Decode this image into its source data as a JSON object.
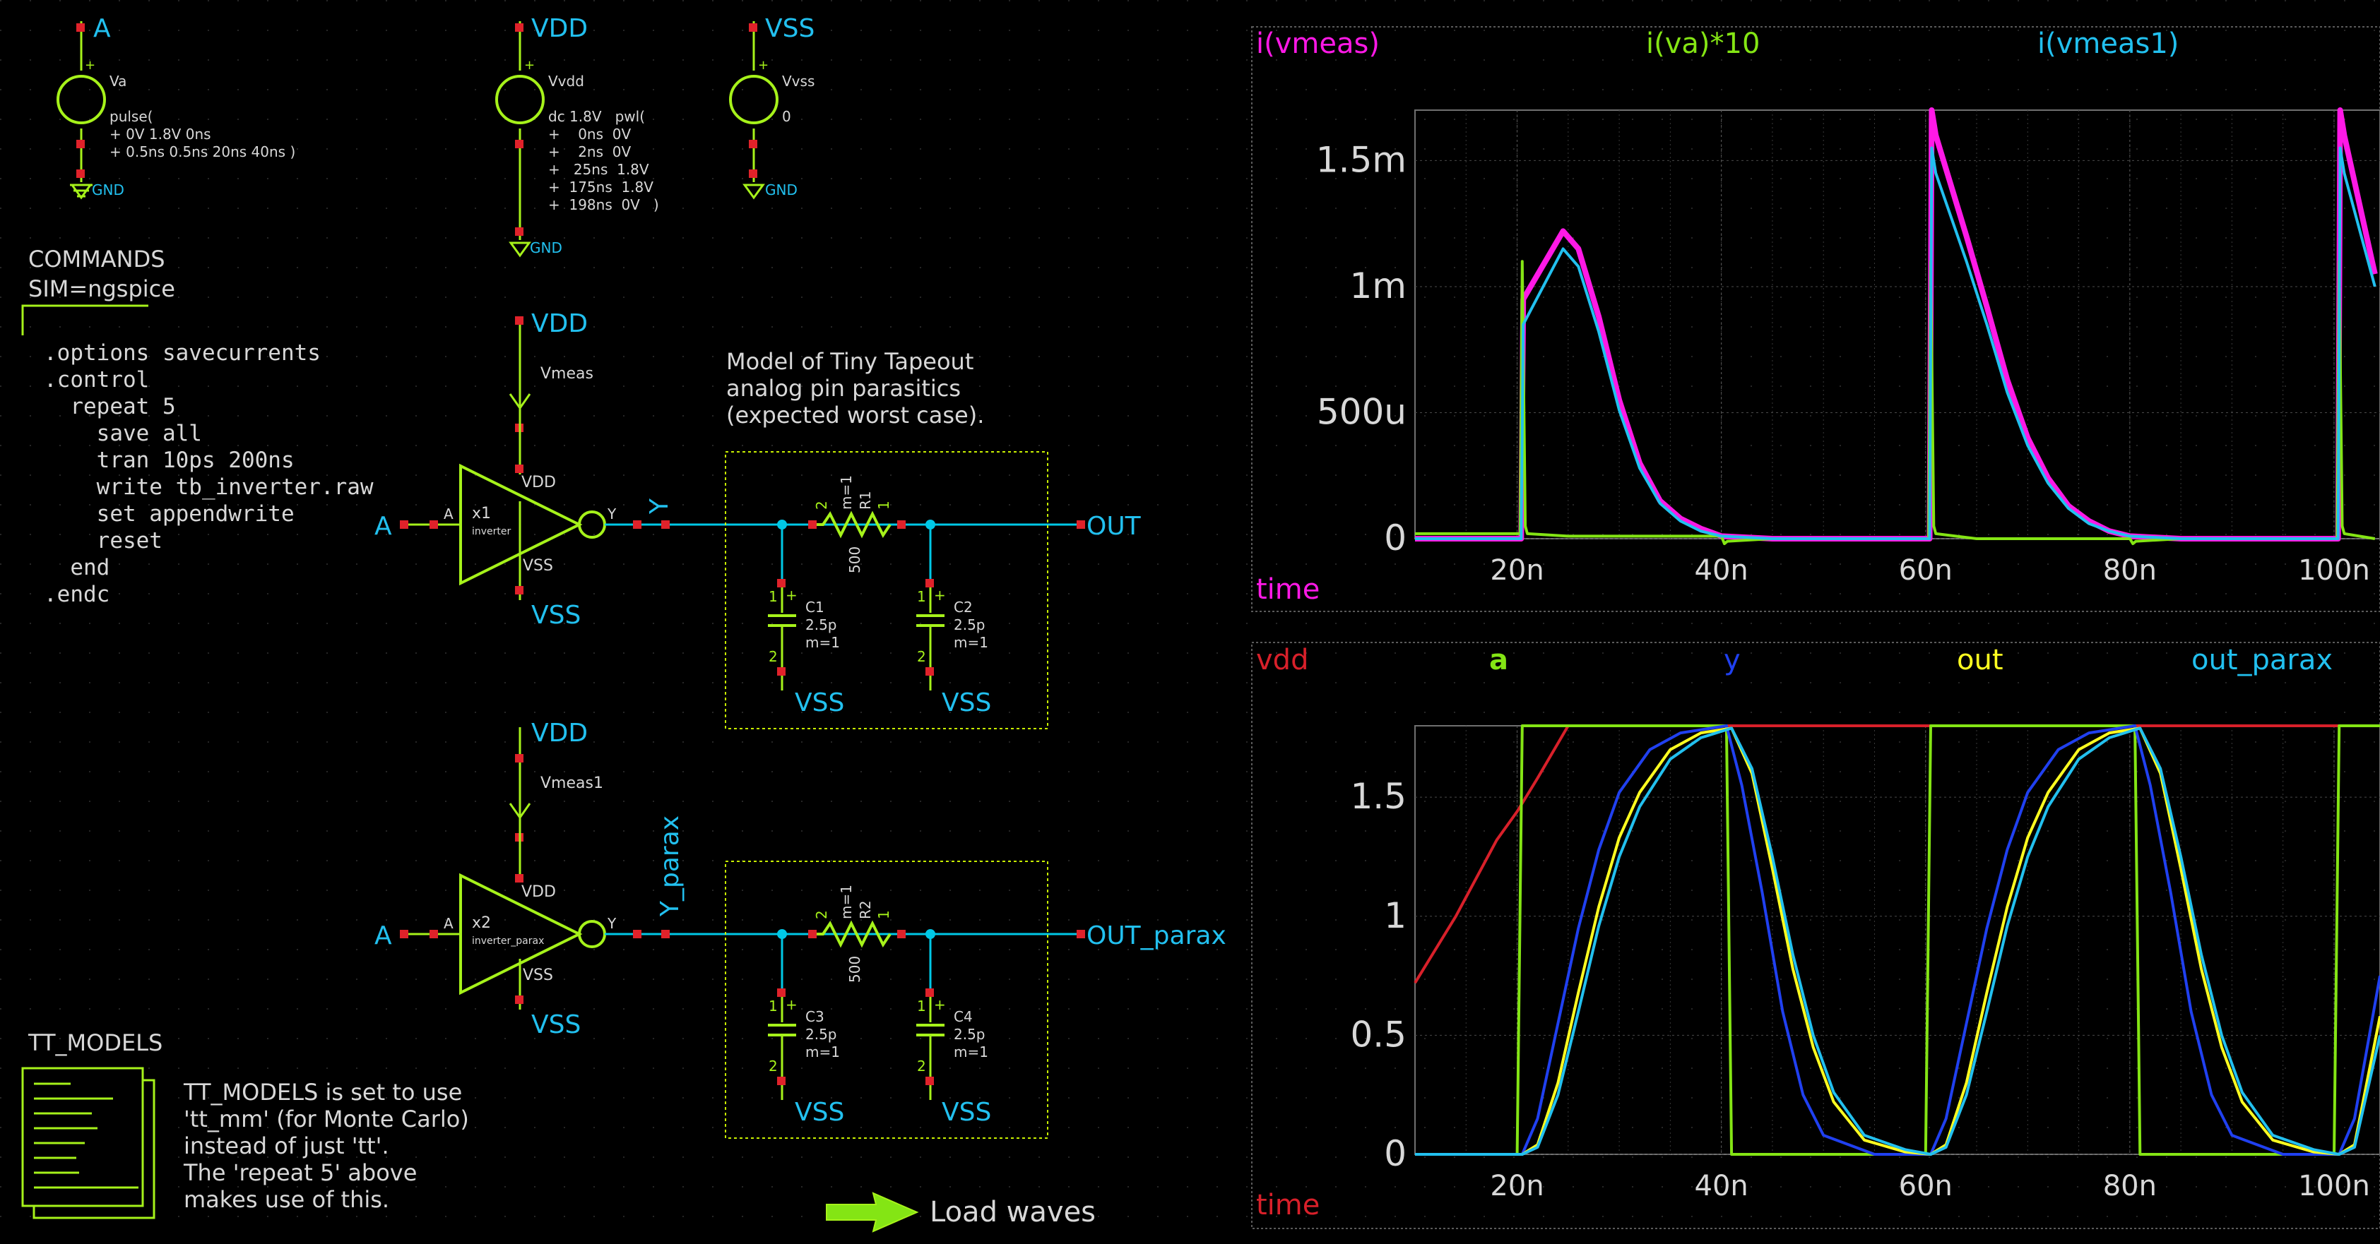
{
  "colors": {
    "background": "#000000",
    "wire": "#00c8e6",
    "component": "#a6f21a",
    "pin": "#e0222a",
    "label": "#22c0ef",
    "text": "#d8d8d8",
    "box": "#c8f000",
    "grid_dot": "#2a2a2a",
    "plot_frame": "#5a5a5a",
    "magenta": "#ff19e6",
    "green": "#84e514",
    "cyan": "#22c0ef",
    "red": "#d8202a",
    "blue": "#2040f0",
    "yellow": "#ffff20"
  },
  "sources": {
    "va": {
      "net": "A",
      "name": "Va",
      "value": [
        "pulse(",
        "+ 0V 1.8V 0ns",
        "+ 0.5ns 0.5ns 20ns 40ns )"
      ],
      "ground": "GND"
    },
    "vdd": {
      "net": "VDD",
      "name": "Vvdd",
      "value": [
        "dc 1.8V   pwl(",
        "+    0ns  0V",
        "+    2ns  0V",
        "+   25ns  1.8V",
        "+  175ns  1.8V",
        "+  198ns  0V   )"
      ],
      "ground": "GND"
    },
    "vss": {
      "net": "VSS",
      "name": "Vvss",
      "value": [
        "0"
      ],
      "ground": "GND"
    }
  },
  "commands": {
    "title": "COMMANDS",
    "sim": "SIM=ngspice",
    "lines": [
      ".options savecurrents",
      ".control",
      "  repeat 5",
      "    save all",
      "    tran 10ps 200ns",
      "    write tb_inverter.raw",
      "    set appendwrite",
      "    reset",
      "  end",
      ".endc"
    ]
  },
  "parasitic_note": [
    "Model of Tiny Tapeout",
    "analog pin parasitics",
    "(expected worst case)."
  ],
  "circuit1": {
    "vdd_label": "VDD",
    "meas_name": "Vmeas",
    "pin_vdd": "VDD",
    "pin_vss": "VSS",
    "vss_label": "VSS",
    "input": "A",
    "pin_a": "A",
    "inst": "x1",
    "cell": "inverter",
    "pin_y": "Y",
    "net_y": "Y",
    "r_name": "R1",
    "r_mult": "m=1",
    "r_val": "500",
    "r_pin2": "2",
    "r_pin1": "1",
    "c1": {
      "name": "C1",
      "val": "2.5p",
      "mult": "m=1"
    },
    "c2": {
      "name": "C2",
      "val": "2.5p",
      "mult": "m=1"
    },
    "c_vss": "VSS",
    "output": "OUT"
  },
  "circuit2": {
    "vdd_label": "VDD",
    "meas_name": "Vmeas1",
    "pin_vdd": "VDD",
    "pin_vss": "VSS",
    "vss_label": "VSS",
    "input": "A",
    "pin_a": "A",
    "inst": "x2",
    "cell": "inverter_parax",
    "pin_y": "Y",
    "net_y": "Y_parax",
    "r_name": "R2",
    "r_mult": "m=1",
    "r_val": "500",
    "r_pin2": "2",
    "r_pin1": "1",
    "c1": {
      "name": "C3",
      "val": "2.5p",
      "mult": "m=1"
    },
    "c2": {
      "name": "C4",
      "val": "2.5p",
      "mult": "m=1"
    },
    "c_vss": "VSS",
    "output": "OUT_parax"
  },
  "tt_models": {
    "title": "TT_MODELS",
    "note": [
      "TT_MODELS is set to use",
      "'tt_mm' (for Monte Carlo)",
      "instead of just 'tt'.",
      "The 'repeat 5' above",
      "makes use of this."
    ]
  },
  "load_waves": {
    "label": "Load waves"
  },
  "chart_data": [
    {
      "type": "line",
      "xlabel": "time",
      "legend": [
        "i(vmeas)",
        "i(va)*10",
        "i(vmeas1)"
      ],
      "series": [
        {
          "name": "i(vmeas)",
          "color": "#ff19e6",
          "x": [
            10,
            20.4,
            20.6,
            24.5,
            26,
            28,
            30,
            32,
            34,
            36,
            38,
            40,
            45,
            60,
            60.4,
            60.6,
            61,
            64,
            66,
            68,
            70,
            72,
            74,
            76,
            78,
            80,
            85,
            100,
            100.4,
            100.6,
            101,
            104
          ],
          "y": [
            0,
            0,
            0.00095,
            0.00122,
            0.00115,
            0.00088,
            0.00055,
            0.0003,
            0.00015,
            8e-05,
            4e-05,
            1e-05,
            0,
            0,
            0,
            0.0017,
            0.0016,
            0.0012,
            0.00092,
            0.00063,
            0.0004,
            0.00024,
            0.00013,
            7e-05,
            3e-05,
            1e-05,
            0,
            0,
            0,
            0.0017,
            0.0016,
            0.00105
          ]
        },
        {
          "name": "i(va)*10",
          "color": "#84e514",
          "x": [
            10,
            20.3,
            20.5,
            20.8,
            21,
            25,
            30,
            35,
            40,
            40.3,
            40.6,
            45,
            60,
            60.3,
            60.5,
            60.8,
            61,
            65,
            80,
            80.3,
            80.6,
            85,
            100,
            100.3,
            100.5,
            100.8,
            101,
            104
          ],
          "y": [
            2e-05,
            2e-05,
            0.0011,
            5e-05,
            2e-05,
            1e-05,
            1e-05,
            1e-05,
            1e-05,
            -2e-05,
            -1e-05,
            0,
            0,
            0,
            0.0011,
            5e-05,
            2e-05,
            0,
            0,
            -2e-05,
            -1e-05,
            0,
            0,
            0,
            0.0011,
            5e-05,
            2e-05,
            0
          ]
        },
        {
          "name": "i(vmeas1)",
          "color": "#22c0ef",
          "x": [
            10,
            20.4,
            20.6,
            24.5,
            26,
            28,
            30,
            32,
            34,
            36,
            38,
            40,
            45,
            60,
            60.4,
            60.6,
            61,
            64,
            66,
            68,
            70,
            72,
            74,
            76,
            78,
            80,
            85,
            100,
            100.4,
            100.6,
            101,
            104
          ],
          "y": [
            0,
            0,
            0.00085,
            0.00115,
            0.00108,
            0.00082,
            0.00051,
            0.00028,
            0.00014,
            7e-05,
            3e-05,
            1e-05,
            0,
            0,
            0,
            0.00155,
            0.00145,
            0.0011,
            0.00085,
            0.00058,
            0.00037,
            0.00022,
            0.00012,
            6e-05,
            3e-05,
            1e-05,
            0,
            0,
            0,
            0.00155,
            0.00145,
            0.001
          ]
        }
      ],
      "xlim": [
        10,
        104.5
      ],
      "ylim": [
        0,
        0.0017
      ],
      "xticks": [
        20,
        40,
        60,
        80,
        100
      ],
      "xtick_labels": [
        "20n",
        "40n",
        "60n",
        "80n",
        "100n"
      ],
      "yticks": [
        0,
        0.0005,
        0.001,
        0.0015
      ],
      "ytick_labels": [
        "0",
        "500u",
        "1m",
        "1.5m"
      ],
      "grid": true
    },
    {
      "type": "line",
      "xlabel": "time",
      "legend": [
        "vdd",
        "a",
        "y",
        "out",
        "out_parax"
      ],
      "series": [
        {
          "name": "vdd",
          "color": "#d8202a",
          "x": [
            10,
            14,
            18,
            20,
            22,
            25,
            104.5
          ],
          "y": [
            0.72,
            1.0,
            1.32,
            1.44,
            1.58,
            1.8,
            1.8
          ]
        },
        {
          "name": "a",
          "color": "#84e514",
          "x": [
            10,
            20,
            20.5,
            40.5,
            41,
            60,
            60.5,
            80.5,
            81,
            100,
            100.5,
            104.5
          ],
          "y": [
            0,
            0,
            1.8,
            1.8,
            0,
            0,
            1.8,
            1.8,
            0,
            0,
            1.8,
            1.8
          ]
        },
        {
          "name": "y",
          "color": "#2040f0",
          "x": [
            10,
            20.5,
            22,
            24,
            26,
            28,
            30,
            33,
            36,
            40.5,
            42,
            44,
            46,
            48,
            50,
            55,
            60.5,
            62,
            64,
            66,
            68,
            70,
            73,
            76,
            80.5,
            82,
            84,
            86,
            88,
            90,
            95,
            100.5,
            102,
            104.5
          ],
          "y": [
            0,
            0,
            0.15,
            0.55,
            0.95,
            1.28,
            1.52,
            1.7,
            1.77,
            1.8,
            1.55,
            1.1,
            0.6,
            0.25,
            0.08,
            0,
            0,
            0.15,
            0.55,
            0.95,
            1.28,
            1.52,
            1.7,
            1.77,
            1.8,
            1.55,
            1.1,
            0.6,
            0.25,
            0.08,
            0,
            0,
            0.15,
            0.75
          ]
        },
        {
          "name": "out",
          "color": "#ffff20",
          "x": [
            10,
            20.5,
            22,
            24,
            26,
            28,
            30,
            32,
            35,
            38,
            41,
            43,
            45,
            47,
            49,
            51,
            54,
            58,
            60.5,
            62,
            64,
            66,
            68,
            70,
            72,
            75,
            78,
            81,
            83,
            85,
            87,
            89,
            91,
            94,
            98,
            100.5,
            102,
            104.5
          ],
          "y": [
            0,
            0,
            0.04,
            0.3,
            0.68,
            1.04,
            1.33,
            1.52,
            1.7,
            1.77,
            1.79,
            1.6,
            1.2,
            0.78,
            0.45,
            0.22,
            0.06,
            0.01,
            0,
            0.04,
            0.3,
            0.68,
            1.04,
            1.33,
            1.52,
            1.7,
            1.77,
            1.79,
            1.6,
            1.2,
            0.78,
            0.45,
            0.22,
            0.06,
            0.01,
            0,
            0.04,
            0.58
          ]
        },
        {
          "name": "out_parax",
          "color": "#22c0ef",
          "x": [
            10,
            20.5,
            22,
            24,
            26,
            28,
            30,
            32,
            35,
            38,
            41,
            43,
            45,
            47,
            49,
            51,
            54,
            58,
            60.5,
            62,
            64,
            66,
            68,
            70,
            72,
            75,
            78,
            81,
            83,
            85,
            87,
            89,
            91,
            94,
            98,
            100.5,
            102,
            104.5
          ],
          "y": [
            0,
            0,
            0.03,
            0.25,
            0.6,
            0.96,
            1.25,
            1.46,
            1.66,
            1.75,
            1.79,
            1.62,
            1.25,
            0.84,
            0.5,
            0.26,
            0.08,
            0.02,
            0,
            0.03,
            0.25,
            0.6,
            0.96,
            1.25,
            1.46,
            1.66,
            1.75,
            1.79,
            1.62,
            1.25,
            0.84,
            0.5,
            0.26,
            0.08,
            0.02,
            0,
            0.03,
            0.5
          ]
        }
      ],
      "xlim": [
        10,
        104.5
      ],
      "ylim": [
        0,
        1.8
      ],
      "xticks": [
        20,
        40,
        60,
        80,
        100
      ],
      "xtick_labels": [
        "20n",
        "40n",
        "60n",
        "80n",
        "100n"
      ],
      "yticks": [
        0,
        0.5,
        1,
        1.5
      ],
      "ytick_labels": [
        "0",
        "0.5",
        "1",
        "1.5"
      ],
      "grid": true
    }
  ]
}
